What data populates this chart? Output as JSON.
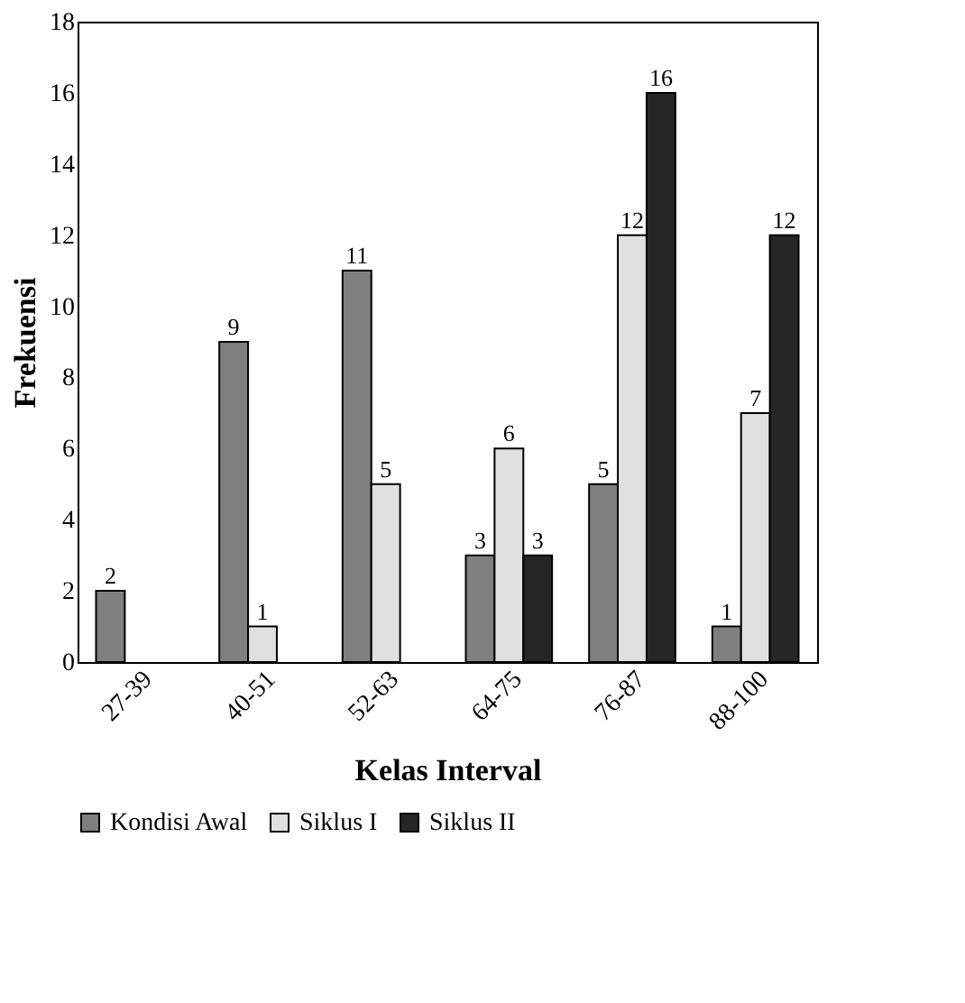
{
  "chart_data": {
    "type": "bar",
    "xlabel": "Kelas Interval",
    "ylabel": "Frekuensi",
    "categories": [
      "27-39",
      "40-51",
      "52-63",
      "64-75",
      "76-87",
      "88-100"
    ],
    "series": [
      {
        "name": "Kondisi Awal",
        "color": "#7f7f7f",
        "values": [
          2,
          9,
          11,
          3,
          5,
          1
        ],
        "value_labels": [
          "2",
          "9",
          "11",
          "3",
          "5",
          "1"
        ]
      },
      {
        "name": "Siklus I",
        "color": "#e0e0e0",
        "values": [
          0,
          1,
          5,
          6,
          12,
          7
        ],
        "value_labels": [
          null,
          "1",
          "5",
          "6",
          "12",
          "7"
        ]
      },
      {
        "name": "Siklus II",
        "color": "#262626",
        "values": [
          0,
          0,
          0,
          3,
          16,
          12
        ],
        "value_labels": [
          null,
          null,
          null,
          "3",
          "16",
          "12"
        ]
      }
    ],
    "ylim": [
      0,
      18
    ],
    "yticks": [
      0,
      2,
      4,
      6,
      8,
      10,
      12,
      14,
      16,
      18
    ],
    "grid": false,
    "legend": "bottom"
  }
}
